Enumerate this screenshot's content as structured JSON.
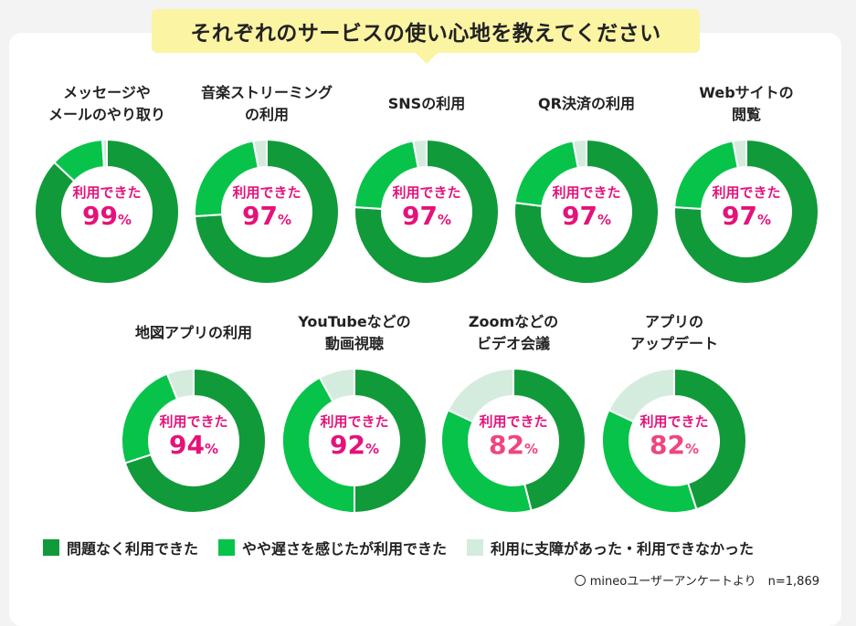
{
  "title": "それぞれのサービスの使い心地を教えてください",
  "center_caption": "利用できた",
  "percent_sign": "%",
  "colors": {
    "no_problem": "#119a3a",
    "slightly_slow": "#07c34a",
    "had_trouble": "#d4ecdd",
    "pct_pink": "#e5127a",
    "pct_light": "#f0457f"
  },
  "legend": [
    {
      "label": "問題なく利用できた",
      "color": "#119a3a"
    },
    {
      "label": "やや遅さを感じたが利用できた",
      "color": "#07c34a"
    },
    {
      "label": "利用に支障があった・利用できなかった",
      "color": "#d4ecdd"
    }
  ],
  "source_note": "〇 mineoユーザーアンケートより　n=1,869",
  "chart_data": {
    "type": "pie",
    "series_names": [
      "問題なく利用できた",
      "やや遅さを感じたが利用できた",
      "利用に支障があった・利用できなかった"
    ],
    "items": [
      {
        "label": "メッセージや\nメールのやり取り",
        "usable_pct": 99,
        "values": [
          87,
          12,
          1
        ]
      },
      {
        "label": "音楽ストリーミング\nの利用",
        "usable_pct": 97,
        "values": [
          74,
          23,
          3
        ]
      },
      {
        "label": "SNSの利用",
        "usable_pct": 97,
        "values": [
          76,
          21,
          3
        ]
      },
      {
        "label": "QR決済の利用",
        "usable_pct": 97,
        "values": [
          77,
          20,
          3
        ]
      },
      {
        "label": "Webサイトの\n閲覧",
        "usable_pct": 97,
        "values": [
          76,
          21,
          3
        ]
      },
      {
        "label": "地図アプリの利用",
        "usable_pct": 94,
        "values": [
          70,
          24,
          6
        ]
      },
      {
        "label": "YouTubeなどの\n動画視聴",
        "usable_pct": 92,
        "values": [
          50,
          42,
          8
        ]
      },
      {
        "label": "Zoomなどの\nビデオ会議",
        "usable_pct": 82,
        "values": [
          46,
          36,
          18
        ]
      },
      {
        "label": "アプリの\nアップデート",
        "usable_pct": 82,
        "values": [
          45,
          37,
          18
        ]
      }
    ]
  }
}
